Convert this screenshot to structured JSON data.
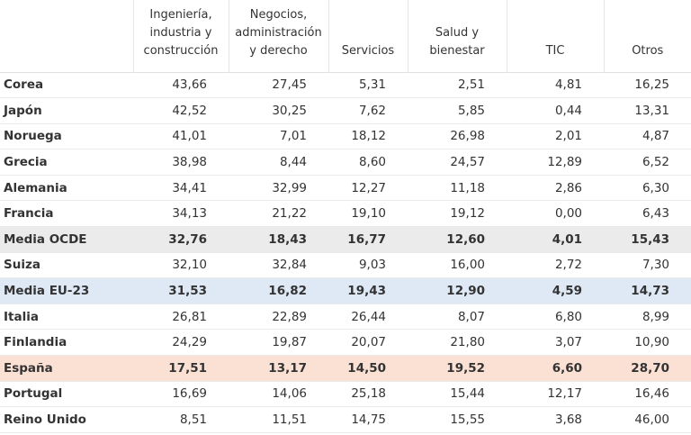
{
  "table": {
    "headers": [
      "",
      "Ingeniería, industria y construcción",
      "Negocios, administración y derecho",
      "Servicios",
      "Salud y bienestar",
      "TIC",
      "Otros"
    ],
    "rows": [
      {
        "name": "Corea",
        "values": [
          "43,66",
          "27,45",
          "5,31",
          "2,51",
          "4,81",
          "16,25"
        ]
      },
      {
        "name": "Japón",
        "values": [
          "42,52",
          "30,25",
          "7,62",
          "5,85",
          "0,44",
          "13,31"
        ]
      },
      {
        "name": "Noruega",
        "values": [
          "41,01",
          "7,01",
          "18,12",
          "26,98",
          "2,01",
          "4,87"
        ]
      },
      {
        "name": "Grecia",
        "values": [
          "38,98",
          "8,44",
          "8,60",
          "24,57",
          "12,89",
          "6,52"
        ]
      },
      {
        "name": "Alemania",
        "values": [
          "34,41",
          "32,99",
          "12,27",
          "11,18",
          "2,86",
          "6,30"
        ]
      },
      {
        "name": "Francia",
        "values": [
          "34,13",
          "21,22",
          "19,10",
          "19,12",
          "0,00",
          "6,43"
        ]
      },
      {
        "name": "Media OCDE",
        "values": [
          "32,76",
          "18,43",
          "16,77",
          "12,60",
          "4,01",
          "15,43"
        ]
      },
      {
        "name": "Suiza",
        "values": [
          "32,10",
          "32,84",
          "9,03",
          "16,00",
          "2,72",
          "7,30"
        ]
      },
      {
        "name": "Media EU-23",
        "values": [
          "31,53",
          "16,82",
          "19,43",
          "12,90",
          "4,59",
          "14,73"
        ]
      },
      {
        "name": "Italia",
        "values": [
          "26,81",
          "22,89",
          "26,44",
          "8,07",
          "6,80",
          "8,99"
        ]
      },
      {
        "name": "Finlandia",
        "values": [
          "24,29",
          "19,87",
          "20,07",
          "21,80",
          "3,07",
          "10,90"
        ]
      },
      {
        "name": "España",
        "values": [
          "17,51",
          "13,17",
          "14,50",
          "19,52",
          "6,60",
          "28,70"
        ]
      },
      {
        "name": "Portugal",
        "values": [
          "16,69",
          "14,06",
          "25,18",
          "15,44",
          "12,17",
          "16,46"
        ]
      },
      {
        "name": "Reino Unido",
        "values": [
          "8,51",
          "11,51",
          "14,75",
          "15,55",
          "3,68",
          "46,00"
        ]
      }
    ],
    "highlight_colors": {
      "Media OCDE": "#ebebeb",
      "Media EU-23": "#dfe9f5",
      "España": "#fbe0d4"
    }
  }
}
